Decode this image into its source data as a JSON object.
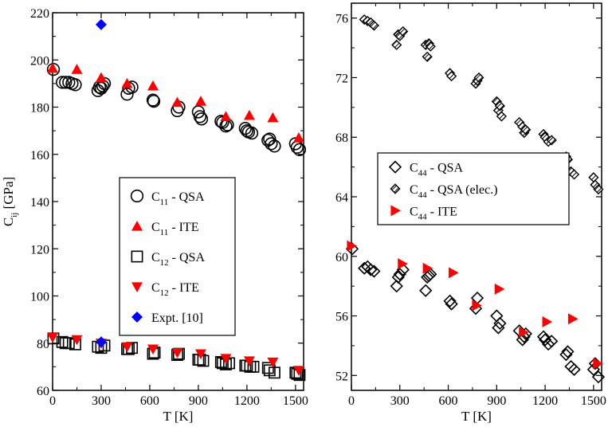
{
  "chart_data": [
    {
      "type": "scatter",
      "panel": "left",
      "xlabel": "T [K]",
      "ylabel_main": "C",
      "ylabel_sub": "ij",
      "ylabel_unit": " [GPa]",
      "xlim": [
        0,
        1550
      ],
      "ylim": [
        60,
        220
      ],
      "xticks": [
        0,
        300,
        600,
        900,
        1200,
        1500
      ],
      "yticks": [
        60,
        80,
        100,
        120,
        140,
        160,
        180,
        200,
        220
      ],
      "legend_position": "center-right",
      "series": [
        {
          "name": "C11 - QSA",
          "label_main": "C",
          "label_sub": "11",
          "label_rest": " - QSA",
          "marker": "circle-open",
          "color": "#000000",
          "points": [
            [
              5,
              196
            ],
            [
              60,
              190.5
            ],
            [
              80,
              190.5
            ],
            [
              100,
              190.5
            ],
            [
              120,
              190
            ],
            [
              140,
              189.5
            ],
            [
              280,
              187
            ],
            [
              290,
              188.5
            ],
            [
              300,
              188
            ],
            [
              310,
              189
            ],
            [
              320,
              190
            ],
            [
              460,
              185.5
            ],
            [
              470,
              188
            ],
            [
              490,
              188.5
            ],
            [
              620,
              183
            ],
            [
              625,
              182.5
            ],
            [
              770,
              178.5
            ],
            [
              780,
              180
            ],
            [
              900,
              178
            ],
            [
              910,
              176
            ],
            [
              920,
              175
            ],
            [
              1040,
              174
            ],
            [
              1050,
              173.5
            ],
            [
              1070,
              172
            ],
            [
              1080,
              172.5
            ],
            [
              1190,
              171
            ],
            [
              1200,
              170
            ],
            [
              1210,
              169.5
            ],
            [
              1230,
              169
            ],
            [
              1330,
              166
            ],
            [
              1340,
              166.5
            ],
            [
              1350,
              164.5
            ],
            [
              1370,
              163.5
            ],
            [
              1500,
              164.5
            ],
            [
              1510,
              163
            ],
            [
              1525,
              162
            ]
          ]
        },
        {
          "name": "C11 - ITE",
          "label_main": "C",
          "label_sub": "11",
          "label_rest": " - ITE",
          "marker": "triangle-up",
          "color": "#ff0000",
          "points": [
            [
              0,
              196.5
            ],
            [
              150,
              196
            ],
            [
              300,
              192.5
            ],
            [
              460,
              190
            ],
            [
              620,
              189
            ],
            [
              770,
              182
            ],
            [
              915,
              182.5
            ],
            [
              1070,
              176
            ],
            [
              1215,
              176.5
            ],
            [
              1360,
              175.5
            ],
            [
              1520,
              167
            ]
          ]
        },
        {
          "name": "C12 - QSA",
          "label_main": "C",
          "label_sub": "12",
          "label_rest": " - QSA",
          "marker": "square-open",
          "color": "#000000",
          "points": [
            [
              5,
              82
            ],
            [
              60,
              80.5
            ],
            [
              80,
              80
            ],
            [
              100,
              80
            ],
            [
              140,
              79.5
            ],
            [
              280,
              78.5
            ],
            [
              300,
              78
            ],
            [
              320,
              79
            ],
            [
              460,
              77.5
            ],
            [
              470,
              77.5
            ],
            [
              490,
              78
            ],
            [
              620,
              75.5
            ],
            [
              630,
              76
            ],
            [
              770,
              75
            ],
            [
              780,
              75.5
            ],
            [
              900,
              73
            ],
            [
              910,
              73
            ],
            [
              930,
              72.5
            ],
            [
              1040,
              72
            ],
            [
              1050,
              71.5
            ],
            [
              1070,
              71
            ],
            [
              1090,
              71.5
            ],
            [
              1190,
              70.5
            ],
            [
              1200,
              70.5
            ],
            [
              1220,
              70
            ],
            [
              1240,
              70
            ],
            [
              1330,
              69.5
            ],
            [
              1340,
              68.5
            ],
            [
              1370,
              67.5
            ],
            [
              1500,
              67.5
            ],
            [
              1510,
              67
            ],
            [
              1525,
              66.5
            ]
          ]
        },
        {
          "name": "C12 - ITE",
          "label_main": "C",
          "label_sub": "12",
          "label_rest": " - ITE",
          "marker": "triangle-down",
          "color": "#ff0000",
          "points": [
            [
              0,
              82.5
            ],
            [
              150,
              81.5
            ],
            [
              300,
              80
            ],
            [
              460,
              78.5
            ],
            [
              620,
              77.5
            ],
            [
              770,
              76
            ],
            [
              915,
              75.5
            ],
            [
              1070,
              73.5
            ],
            [
              1215,
              72.5
            ],
            [
              1360,
              72
            ],
            [
              1520,
              68.5
            ]
          ]
        },
        {
          "name": "Expt. [10]",
          "label_main": "Expt. [10]",
          "label_sub": "",
          "label_rest": "",
          "marker": "diamond-filled",
          "color": "#0000ff",
          "points": [
            [
              300,
              215
            ],
            [
              300,
              80.5
            ]
          ]
        }
      ]
    },
    {
      "type": "scatter",
      "panel": "right",
      "xlabel": "T [K]",
      "xlim": [
        0,
        1550
      ],
      "ylim": [
        51,
        77
      ],
      "xticks": [
        0,
        300,
        600,
        900,
        1200,
        1500
      ],
      "yticks": [
        52,
        56,
        60,
        64,
        68,
        72,
        76
      ],
      "legend_position": "center-right",
      "series": [
        {
          "name": "C44 - QSA",
          "label_main": "C",
          "label_sub": "44",
          "label_rest": " - QSA",
          "marker": "diamond-open",
          "color": "#000000",
          "points": [
            [
              5,
              60.5
            ],
            [
              80,
              59.2
            ],
            [
              100,
              59.3
            ],
            [
              120,
              59.1
            ],
            [
              140,
              59
            ],
            [
              280,
              58
            ],
            [
              290,
              58.6
            ],
            [
              300,
              58.8
            ],
            [
              320,
              59.1
            ],
            [
              460,
              57.7
            ],
            [
              470,
              58.6
            ],
            [
              480,
              58.7
            ],
            [
              490,
              58.8
            ],
            [
              610,
              57
            ],
            [
              620,
              56.8
            ],
            [
              770,
              56.5
            ],
            [
              780,
              57.2
            ],
            [
              900,
              56
            ],
            [
              910,
              55.2
            ],
            [
              920,
              55.5
            ],
            [
              1040,
              55
            ],
            [
              1060,
              54.4
            ],
            [
              1070,
              54.6
            ],
            [
              1080,
              54.8
            ],
            [
              1190,
              54.6
            ],
            [
              1200,
              54.4
            ],
            [
              1220,
              54.1
            ],
            [
              1240,
              54.3
            ],
            [
              1330,
              53.4
            ],
            [
              1340,
              53.6
            ],
            [
              1360,
              52.6
            ],
            [
              1380,
              52.4
            ],
            [
              1500,
              52.4
            ],
            [
              1510,
              52.8
            ],
            [
              1530,
              51.9
            ]
          ]
        },
        {
          "name": "C44 - QSA (elec.)",
          "label_main": "C",
          "label_sub": "44",
          "label_rest": " - QSA (elec.)",
          "marker": "diamond-hatched",
          "color": "#000000",
          "points": [
            [
              80,
              75.9
            ],
            [
              100,
              75.8
            ],
            [
              120,
              75.7
            ],
            [
              140,
              75.5
            ],
            [
              280,
              74.2
            ],
            [
              290,
              74.9
            ],
            [
              300,
              74.8
            ],
            [
              320,
              75.1
            ],
            [
              460,
              74.2
            ],
            [
              470,
              73.4
            ],
            [
              480,
              74.3
            ],
            [
              490,
              74.1
            ],
            [
              610,
              72.3
            ],
            [
              620,
              72.1
            ],
            [
              770,
              71.6
            ],
            [
              780,
              71.8
            ],
            [
              790,
              72
            ],
            [
              900,
              70.4
            ],
            [
              910,
              69.8
            ],
            [
              920,
              70.1
            ],
            [
              930,
              69.4
            ],
            [
              1040,
              69
            ],
            [
              1060,
              68.7
            ],
            [
              1070,
              68.3
            ],
            [
              1080,
              68.5
            ],
            [
              1190,
              68.2
            ],
            [
              1200,
              68
            ],
            [
              1220,
              67.7
            ],
            [
              1240,
              67.8
            ],
            [
              1330,
              66.7
            ],
            [
              1340,
              66.5
            ],
            [
              1360,
              65.7
            ],
            [
              1380,
              65.5
            ],
            [
              1500,
              65.3
            ],
            [
              1510,
              64.8
            ],
            [
              1530,
              64.5
            ]
          ]
        },
        {
          "name": "C44 - ITE",
          "label_main": "C",
          "label_sub": "44",
          "label_rest": " - ITE",
          "marker": "triangle-right",
          "color": "#ff0000",
          "points": [
            [
              0,
              60.7
            ],
            [
              315,
              59.5
            ],
            [
              470,
              59.2
            ],
            [
              630,
              58.9
            ],
            [
              775,
              56.7
            ],
            [
              915,
              57.8
            ],
            [
              1065,
              54.9
            ],
            [
              1210,
              55.6
            ],
            [
              1370,
              55.8
            ],
            [
              1525,
              52.8
            ]
          ]
        }
      ]
    }
  ]
}
